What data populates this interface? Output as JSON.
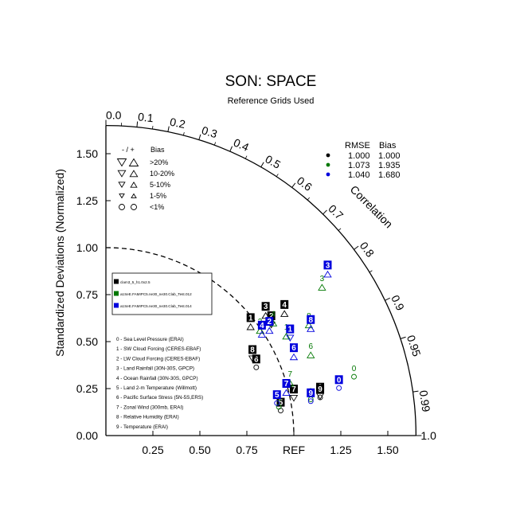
{
  "chart_data": {
    "type": "scatter",
    "title": "SON: SPACE",
    "subtitle": "Reference Grids Used",
    "ylabel": "Standardized Deviations (Normalized)",
    "correlation_label": "Correlation",
    "xlim": [
      0,
      1.65
    ],
    "ylim": [
      0,
      1.65
    ],
    "grid": false,
    "x_tick_labels": [
      "0.25",
      "0.50",
      "0.75",
      "REF",
      "1.25",
      "1.50"
    ],
    "x_tick_values": [
      0.25,
      0.5,
      0.75,
      1.0,
      1.25,
      1.5
    ],
    "y_tick_labels": [
      "0.00",
      "0.25",
      "0.50",
      "0.75",
      "1.00",
      "1.25",
      "1.50"
    ],
    "y_tick_values": [
      0.0,
      0.25,
      0.5,
      0.75,
      1.0,
      1.25,
      1.5
    ],
    "corr_ticks": [
      {
        "r": 0.0,
        "label": "0.0"
      },
      {
        "r": 0.1,
        "label": "0.1"
      },
      {
        "r": 0.2,
        "label": "0.2"
      },
      {
        "r": 0.3,
        "label": "0.3"
      },
      {
        "r": 0.4,
        "label": "0.4"
      },
      {
        "r": 0.5,
        "label": "0.5"
      },
      {
        "r": 0.6,
        "label": "0.6"
      },
      {
        "r": 0.7,
        "label": "0.7"
      },
      {
        "r": 0.8,
        "label": "0.8"
      },
      {
        "r": 0.9,
        "label": "0.9"
      },
      {
        "r": 0.95,
        "label": "0.95"
      },
      {
        "r": 0.99,
        "label": "0.99"
      },
      {
        "r": 1.0,
        "label": "1.0"
      }
    ],
    "bias_legend": {
      "header_sign": "- / +",
      "header_bias": "Bias",
      "rows": [
        ">20%",
        "10-20%",
        "5-10%",
        "1-5%",
        "<1%"
      ]
    },
    "stats_table": {
      "headers": [
        "RMSE",
        "Bias"
      ],
      "rows": [
        {
          "color": "#000000",
          "rmse": "1.000",
          "bias": "1.000"
        },
        {
          "color": "#007700",
          "rmse": "1.073",
          "bias": "1.935"
        },
        {
          "color": "#0000dd",
          "rmse": "1.040",
          "bias": "1.680"
        }
      ]
    },
    "series": [
      {
        "name": "clam3_5_h1.0x2.5",
        "color": "#000000",
        "badge": true,
        "points": [
          {
            "v": 0,
            "x": 1.14,
            "y": 0.23,
            "dir": "down"
          },
          {
            "v": 1,
            "x": 0.77,
            "y": 0.6,
            "dir": "up"
          },
          {
            "v": 2,
            "x": 0.88,
            "y": 0.61,
            "dir": "down"
          },
          {
            "v": 3,
            "x": 0.85,
            "y": 0.66,
            "dir": "up"
          },
          {
            "v": 4,
            "x": 0.95,
            "y": 0.67,
            "dir": "up"
          },
          {
            "v": 5,
            "x": 0.93,
            "y": 0.15,
            "dir": "none"
          },
          {
            "v": 6,
            "x": 0.8,
            "y": 0.38,
            "dir": "none"
          },
          {
            "v": 7,
            "x": 1.0,
            "y": 0.22,
            "dir": "down"
          },
          {
            "v": 8,
            "x": 0.78,
            "y": 0.43,
            "dir": "down"
          },
          {
            "v": 9,
            "x": 1.14,
            "y": 0.22,
            "dir": "none"
          }
        ]
      },
      {
        "name": "a1SeE.FAMIPC5.ne30_ne30.Clab_Test.012",
        "color": "#007700",
        "badge": false,
        "points": [
          {
            "v": 0,
            "x": 1.32,
            "y": 0.33,
            "dir": "none"
          },
          {
            "v": 1,
            "x": 0.96,
            "y": 0.55,
            "dir": "up"
          },
          {
            "v": 2,
            "x": 0.82,
            "y": 0.58,
            "dir": "up"
          },
          {
            "v": 3,
            "x": 1.15,
            "y": 0.81,
            "dir": "up"
          },
          {
            "v": 4,
            "x": 0.89,
            "y": 0.62,
            "dir": "up"
          },
          {
            "v": 5,
            "x": 0.92,
            "y": 0.17,
            "dir": "none"
          },
          {
            "v": 6,
            "x": 1.09,
            "y": 0.45,
            "dir": "up"
          },
          {
            "v": 7,
            "x": 0.98,
            "y": 0.3,
            "dir": "up"
          },
          {
            "v": 8,
            "x": 1.08,
            "y": 0.61,
            "dir": "up"
          },
          {
            "v": 9,
            "x": 1.09,
            "y": 0.21,
            "dir": "none"
          }
        ]
      },
      {
        "name": "a1SeE.FAMIPC5.ne30_ne30.Clab_Test.014",
        "color": "#0000dd",
        "badge": true,
        "points": [
          {
            "v": 0,
            "x": 1.24,
            "y": 0.27,
            "dir": "none"
          },
          {
            "v": 1,
            "x": 0.98,
            "y": 0.54,
            "dir": "down"
          },
          {
            "v": 2,
            "x": 0.87,
            "y": 0.58,
            "dir": "up"
          },
          {
            "v": 3,
            "x": 1.18,
            "y": 0.88,
            "dir": "up"
          },
          {
            "v": 4,
            "x": 0.83,
            "y": 0.56,
            "dir": "up"
          },
          {
            "v": 5,
            "x": 0.91,
            "y": 0.19,
            "dir": "none"
          },
          {
            "v": 6,
            "x": 1.0,
            "y": 0.44,
            "dir": "up"
          },
          {
            "v": 7,
            "x": 0.96,
            "y": 0.25,
            "dir": "up"
          },
          {
            "v": 8,
            "x": 1.09,
            "y": 0.59,
            "dir": "up"
          },
          {
            "v": 9,
            "x": 1.09,
            "y": 0.2,
            "dir": "none"
          }
        ]
      }
    ],
    "variables": [
      "0 - Sea Level Pressure (ERAI)",
      "1 - SW Cloud Forcing (CERES-EBAF)",
      "2 - LW Cloud Forcing (CERES-EBAF)",
      "3 - Land Rainfall (30N-30S, GPCP)",
      "4 - Ocean Rainfall (30N-30S, GPCP)",
      "5 - Land 2-m Temperature (Willmott)",
      "6 - Pacific Surface Stress (5N-5S,ERS)",
      "7 - Zonal Wind (300mb, ERAI)",
      "8 - Relative Humidity (ERAI)",
      "9 - Temperature (ERAI)"
    ]
  }
}
